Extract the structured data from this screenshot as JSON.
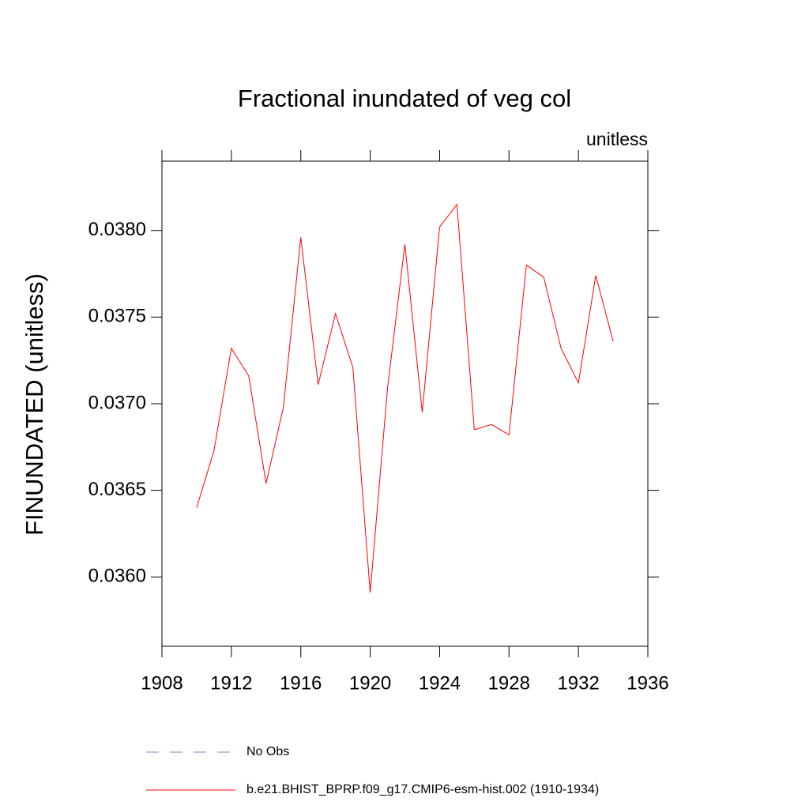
{
  "chart_data": {
    "type": "line",
    "title": "Fractional inundated of veg col",
    "subtitle": "unitless",
    "y_label": "FINUNDATED  (unitless)",
    "x": [
      1910,
      1911,
      1912,
      1913,
      1914,
      1915,
      1916,
      1917,
      1918,
      1919,
      1920,
      1921,
      1922,
      1923,
      1924,
      1925,
      1926,
      1927,
      1928,
      1929,
      1930,
      1931,
      1932,
      1933,
      1934
    ],
    "series": [
      {
        "name": "b.e21.BHIST_BPRP.f09_g17.CMIP6-esm-hist.002 (1910-1934)",
        "color": "#ff0000",
        "values": [
          0.0364,
          0.03673,
          0.03732,
          0.03716,
          0.03654,
          0.03698,
          0.03796,
          0.03711,
          0.03752,
          0.03721,
          0.03591,
          0.03709,
          0.03792,
          0.03695,
          0.03802,
          0.03815,
          0.03685,
          0.03688,
          0.03682,
          0.0378,
          0.03773,
          0.03732,
          0.03712,
          0.03774,
          0.03736
        ]
      }
    ],
    "legend_items": [
      {
        "label": "No Obs",
        "color": "#8080c0",
        "dashed": true
      }
    ],
    "xlim": [
      1908,
      1936
    ],
    "xticks": [
      1908,
      1912,
      1916,
      1920,
      1924,
      1928,
      1932,
      1936
    ],
    "ylim": [
      0.0356,
      0.0384
    ],
    "yticks": [
      {
        "value": 0.036,
        "label": "0.0360"
      },
      0.0365,
      {
        "value": 0.037,
        "label": "0.0370"
      },
      0.0375,
      {
        "value": 0.038,
        "label": "0.0380"
      }
    ],
    "grid": false
  }
}
